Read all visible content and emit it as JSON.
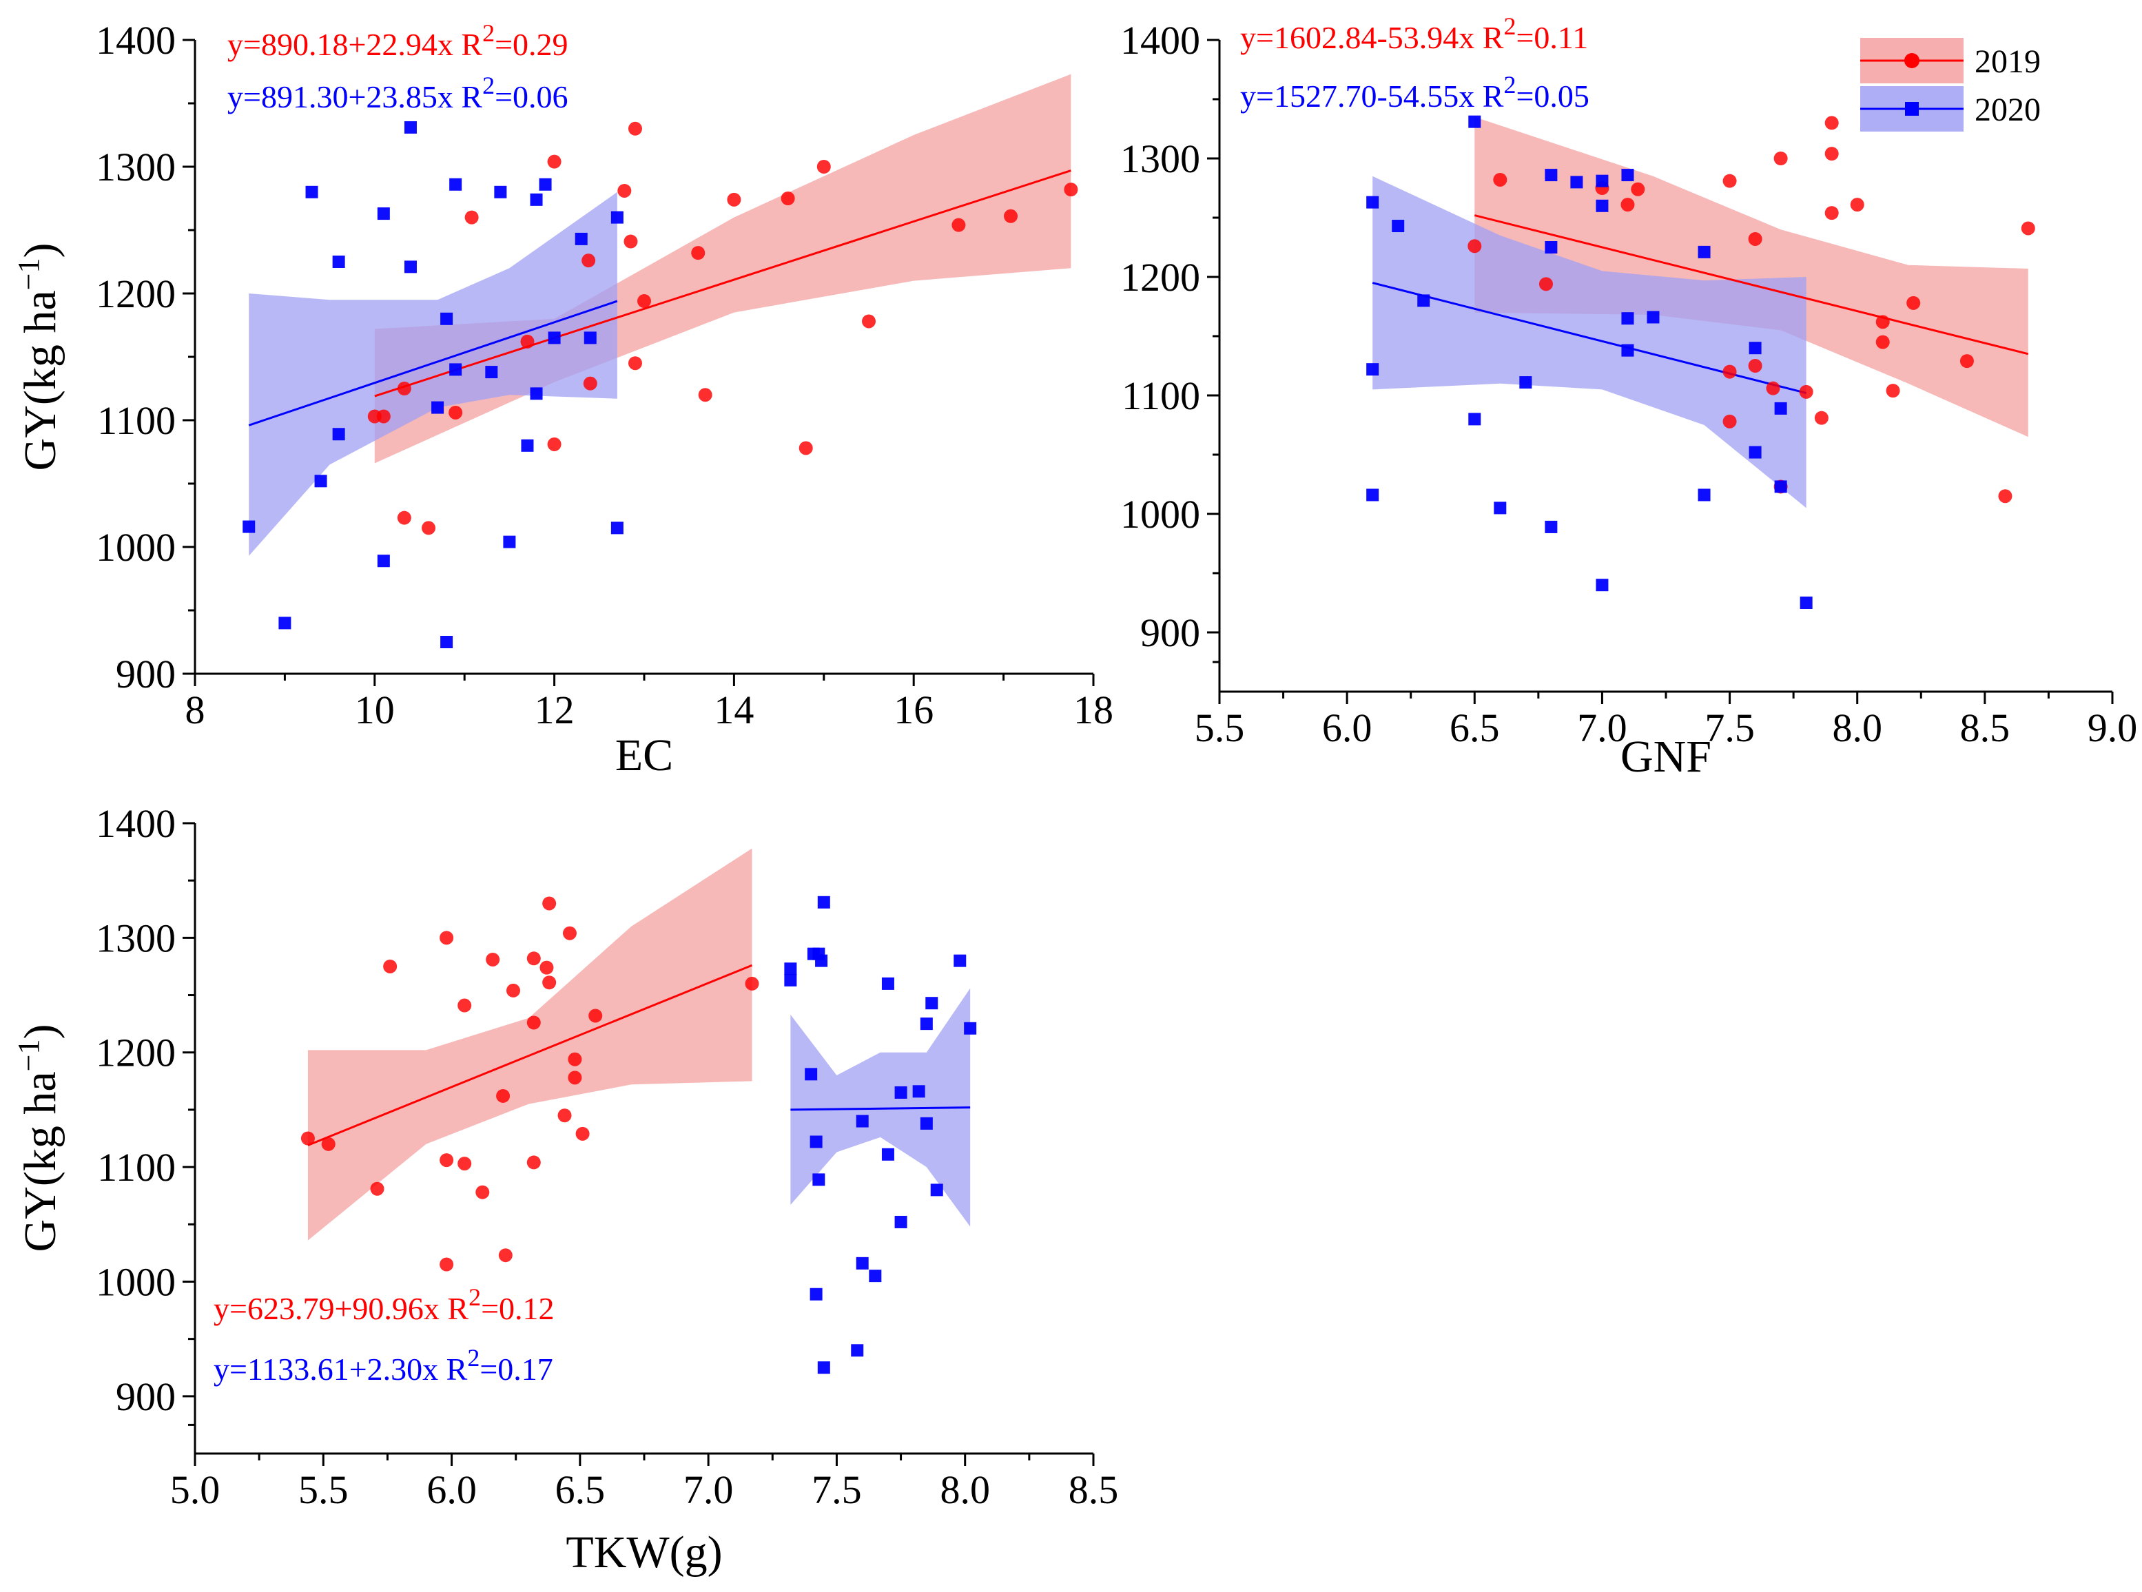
{
  "colors": {
    "y2019": "#ff0000",
    "y2020": "#0000ff",
    "band2019": "#f4a0a0",
    "band2020": "#a0a0f4"
  },
  "legend": {
    "entries": [
      "2019",
      "2020"
    ]
  },
  "chart_data": [
    {
      "id": "ec",
      "type": "scatter",
      "xlabel": "EC",
      "ylabel": "GY(kg ha⁻¹)",
      "xlim": [
        8,
        18
      ],
      "ylim": [
        900,
        1400
      ],
      "xticks": [
        8,
        10,
        12,
        14,
        16,
        18
      ],
      "yticks": [
        900,
        1000,
        1100,
        1200,
        1300,
        1400
      ],
      "equations": [
        {
          "year": "2019",
          "text": "y=890.18+22.94x  R²=0.29",
          "pos": "top-left-1"
        },
        {
          "year": "2020",
          "text": "y=891.30+23.85x  R²=0.06",
          "pos": "top-left-2"
        }
      ],
      "series": [
        {
          "name": "2019",
          "marker": "circle",
          "fit": {
            "x": [
              10,
              17.75
            ],
            "y": [
              1119,
              1297
            ]
          },
          "band": {
            "x": [
              10,
              12,
              14,
              16,
              17.75
            ],
            "lower": [
              1066,
              1130,
              1185,
              1210,
              1220
            ],
            "upper": [
              1172,
              1180,
              1260,
              1325,
              1373
            ]
          },
          "points": [
            [
              10.0,
              1103
            ],
            [
              10.1,
              1103
            ],
            [
              10.33,
              1125
            ],
            [
              10.33,
              1023
            ],
            [
              10.6,
              1015
            ],
            [
              10.9,
              1106
            ],
            [
              11.08,
              1260
            ],
            [
              11.7,
              1162
            ],
            [
              12.0,
              1304
            ],
            [
              12.0,
              1081
            ],
            [
              12.38,
              1226
            ],
            [
              12.4,
              1129
            ],
            [
              12.78,
              1281
            ],
            [
              12.85,
              1241
            ],
            [
              12.9,
              1330
            ],
            [
              12.9,
              1145
            ],
            [
              13.0,
              1194
            ],
            [
              13.6,
              1232
            ],
            [
              13.68,
              1120
            ],
            [
              14.0,
              1274
            ],
            [
              14.6,
              1275
            ],
            [
              14.8,
              1078
            ],
            [
              15.0,
              1300
            ],
            [
              15.5,
              1178
            ],
            [
              16.5,
              1254
            ],
            [
              17.08,
              1261
            ],
            [
              17.75,
              1282
            ]
          ]
        },
        {
          "name": "2020",
          "marker": "square",
          "fit": {
            "x": [
              8.6,
              12.7
            ],
            "y": [
              1096,
              1194
            ]
          },
          "band": {
            "x": [
              8.6,
              9.5,
              10.7,
              11.5,
              12.7
            ],
            "lower": [
              993,
              1065,
              1110,
              1120,
              1117
            ],
            "upper": [
              1200,
              1195,
              1195,
              1220,
              1280
            ]
          },
          "points": [
            [
              8.6,
              1016
            ],
            [
              9.0,
              940
            ],
            [
              9.3,
              1280
            ],
            [
              9.4,
              1052
            ],
            [
              9.6,
              1225
            ],
            [
              9.6,
              1089
            ],
            [
              10.1,
              1263
            ],
            [
              10.1,
              989
            ],
            [
              10.4,
              1331
            ],
            [
              10.4,
              1221
            ],
            [
              10.7,
              1110
            ],
            [
              10.8,
              1180
            ],
            [
              10.8,
              925
            ],
            [
              10.9,
              1140
            ],
            [
              10.9,
              1286
            ],
            [
              11.3,
              1138
            ],
            [
              11.4,
              1280
            ],
            [
              11.5,
              1004
            ],
            [
              11.7,
              1080
            ],
            [
              11.8,
              1274
            ],
            [
              11.8,
              1121
            ],
            [
              11.9,
              1286
            ],
            [
              12.0,
              1165
            ],
            [
              12.3,
              1243
            ],
            [
              12.4,
              1165
            ],
            [
              12.7,
              1260
            ],
            [
              12.7,
              1015
            ]
          ]
        }
      ]
    },
    {
      "id": "gnf",
      "type": "scatter",
      "xlabel": "GNF",
      "ylabel": "",
      "xlim": [
        5.5,
        9.0
      ],
      "ylim": [
        850,
        1400
      ],
      "xticks": [
        5.5,
        6.0,
        6.5,
        7.0,
        7.5,
        8.0,
        8.5,
        9.0
      ],
      "xticklabels": [
        "5.5",
        "6.0",
        "6.5",
        "7.0",
        "7.5",
        "8.0",
        "8.5",
        "9.0"
      ],
      "yticks": [
        900,
        1000,
        1100,
        1200,
        1300,
        1400
      ],
      "equations": [
        {
          "year": "2019",
          "text": "y=1602.84-53.94x  R²=0.11",
          "pos": "top-left-1"
        },
        {
          "year": "2020",
          "text": "y=1527.70-54.55x  R²=0.05",
          "pos": "top-left-2"
        }
      ],
      "series": [
        {
          "name": "2019",
          "marker": "circle",
          "fit": {
            "x": [
              6.5,
              8.67
            ],
            "y": [
              1252,
              1135
            ]
          },
          "band": {
            "x": [
              6.5,
              7.2,
              7.7,
              8.2,
              8.67
            ],
            "lower": [
              1170,
              1168,
              1155,
              1110,
              1065
            ],
            "upper": [
              1335,
              1285,
              1240,
              1210,
              1207
            ]
          },
          "points": [
            [
              6.5,
              1226
            ],
            [
              6.6,
              1282
            ],
            [
              6.78,
              1194
            ],
            [
              7.0,
              1275
            ],
            [
              7.1,
              1261
            ],
            [
              7.14,
              1274
            ],
            [
              7.5,
              1281
            ],
            [
              7.5,
              1120
            ],
            [
              7.5,
              1078
            ],
            [
              7.6,
              1232
            ],
            [
              7.6,
              1125
            ],
            [
              7.67,
              1106
            ],
            [
              7.7,
              1300
            ],
            [
              7.7,
              1023
            ],
            [
              7.8,
              1103
            ],
            [
              7.86,
              1081
            ],
            [
              7.9,
              1330
            ],
            [
              7.9,
              1304
            ],
            [
              7.9,
              1254
            ],
            [
              8.0,
              1261
            ],
            [
              8.1,
              1162
            ],
            [
              8.1,
              1145
            ],
            [
              8.14,
              1104
            ],
            [
              8.22,
              1178
            ],
            [
              8.43,
              1129
            ],
            [
              8.58,
              1015
            ],
            [
              8.67,
              1241
            ]
          ]
        },
        {
          "name": "2020",
          "marker": "square",
          "fit": {
            "x": [
              6.1,
              7.8
            ],
            "y": [
              1195,
              1102
            ]
          },
          "band": {
            "x": [
              6.1,
              6.6,
              7.0,
              7.4,
              7.8
            ],
            "lower": [
              1105,
              1110,
              1105,
              1075,
              1005
            ],
            "upper": [
              1285,
              1235,
              1205,
              1197,
              1200
            ]
          },
          "points": [
            [
              6.1,
              1263
            ],
            [
              6.1,
              1122
            ],
            [
              6.1,
              1016
            ],
            [
              6.2,
              1243
            ],
            [
              6.3,
              1180
            ],
            [
              6.5,
              1331
            ],
            [
              6.5,
              1080
            ],
            [
              6.6,
              1005
            ],
            [
              6.7,
              1111
            ],
            [
              6.8,
              1286
            ],
            [
              6.8,
              1225
            ],
            [
              6.8,
              989
            ],
            [
              6.9,
              1280
            ],
            [
              7.0,
              1281
            ],
            [
              7.0,
              1260
            ],
            [
              7.0,
              940
            ],
            [
              7.1,
              1286
            ],
            [
              7.1,
              1165
            ],
            [
              7.1,
              1138
            ],
            [
              7.2,
              1166
            ],
            [
              7.4,
              1221
            ],
            [
              7.4,
              1016
            ],
            [
              7.6,
              1140
            ],
            [
              7.6,
              1052
            ],
            [
              7.7,
              1089
            ],
            [
              7.7,
              1023
            ],
            [
              7.8,
              925
            ]
          ]
        }
      ]
    },
    {
      "id": "tkw",
      "type": "scatter",
      "xlabel": "TKW(g)",
      "ylabel": "GY(kg ha⁻¹)",
      "xlim": [
        5.0,
        8.5
      ],
      "ylim": [
        850,
        1400
      ],
      "xticks": [
        5.0,
        5.5,
        6.0,
        6.5,
        7.0,
        7.5,
        8.0,
        8.5
      ],
      "xticklabels": [
        "5.0",
        "5.5",
        "6.0",
        "6.5",
        "7.0",
        "7.5",
        "8.0",
        "8.5"
      ],
      "yticks": [
        900,
        1000,
        1100,
        1200,
        1300,
        1400
      ],
      "equations": [
        {
          "year": "2019",
          "text": "y=623.79+90.96x  R²=0.12",
          "pos": "bottom-left-1"
        },
        {
          "year": "2020",
          "text": "y=1133.61+2.30x  R²=0.17",
          "pos": "bottom-left-2"
        }
      ],
      "series": [
        {
          "name": "2019",
          "marker": "circle",
          "fit": {
            "x": [
              5.44,
              7.17
            ],
            "y": [
              1119,
              1276
            ]
          },
          "band": {
            "x": [
              5.44,
              5.9,
              6.3,
              6.7,
              7.17
            ],
            "lower": [
              1036,
              1120,
              1155,
              1172,
              1175
            ],
            "upper": [
              1202,
              1202,
              1230,
              1310,
              1378
            ]
          },
          "points": [
            [
              5.44,
              1125
            ],
            [
              5.52,
              1120
            ],
            [
              5.71,
              1081
            ],
            [
              5.76,
              1275
            ],
            [
              5.98,
              1300
            ],
            [
              5.98,
              1106
            ],
            [
              5.98,
              1015
            ],
            [
              6.05,
              1241
            ],
            [
              6.05,
              1103
            ],
            [
              6.12,
              1078
            ],
            [
              6.16,
              1281
            ],
            [
              6.2,
              1162
            ],
            [
              6.21,
              1023
            ],
            [
              6.24,
              1254
            ],
            [
              6.32,
              1282
            ],
            [
              6.32,
              1226
            ],
            [
              6.32,
              1104
            ],
            [
              6.37,
              1274
            ],
            [
              6.38,
              1261
            ],
            [
              6.38,
              1330
            ],
            [
              6.44,
              1145
            ],
            [
              6.46,
              1304
            ],
            [
              6.48,
              1194
            ],
            [
              6.48,
              1178
            ],
            [
              6.51,
              1129
            ],
            [
              6.56,
              1232
            ],
            [
              7.17,
              1260
            ]
          ]
        },
        {
          "name": "2020",
          "marker": "square",
          "fit": {
            "x": [
              7.32,
              8.02
            ],
            "y": [
              1150,
              1152
            ]
          },
          "band": {
            "x": [
              7.32,
              7.5,
              7.67,
              7.85,
              8.02
            ],
            "lower": [
              1067,
              1113,
              1126,
              1100,
              1048
            ],
            "upper": [
              1233,
              1180,
              1200,
              1200,
              1256
            ]
          },
          "points": [
            [
              7.32,
              1263
            ],
            [
              7.32,
              1273
            ],
            [
              7.4,
              1181
            ],
            [
              7.41,
              1286
            ],
            [
              7.42,
              1122
            ],
            [
              7.42,
              989
            ],
            [
              7.43,
              1286
            ],
            [
              7.43,
              1089
            ],
            [
              7.44,
              1280
            ],
            [
              7.45,
              1331
            ],
            [
              7.45,
              925
            ],
            [
              7.58,
              940
            ],
            [
              7.6,
              1140
            ],
            [
              7.6,
              1016
            ],
            [
              7.65,
              1005
            ],
            [
              7.7,
              1260
            ],
            [
              7.7,
              1111
            ],
            [
              7.75,
              1052
            ],
            [
              7.75,
              1165
            ],
            [
              7.82,
              1166
            ],
            [
              7.85,
              1225
            ],
            [
              7.85,
              1138
            ],
            [
              7.87,
              1243
            ],
            [
              7.89,
              1080
            ],
            [
              7.98,
              1280
            ],
            [
              8.02,
              1221
            ]
          ]
        }
      ]
    }
  ]
}
